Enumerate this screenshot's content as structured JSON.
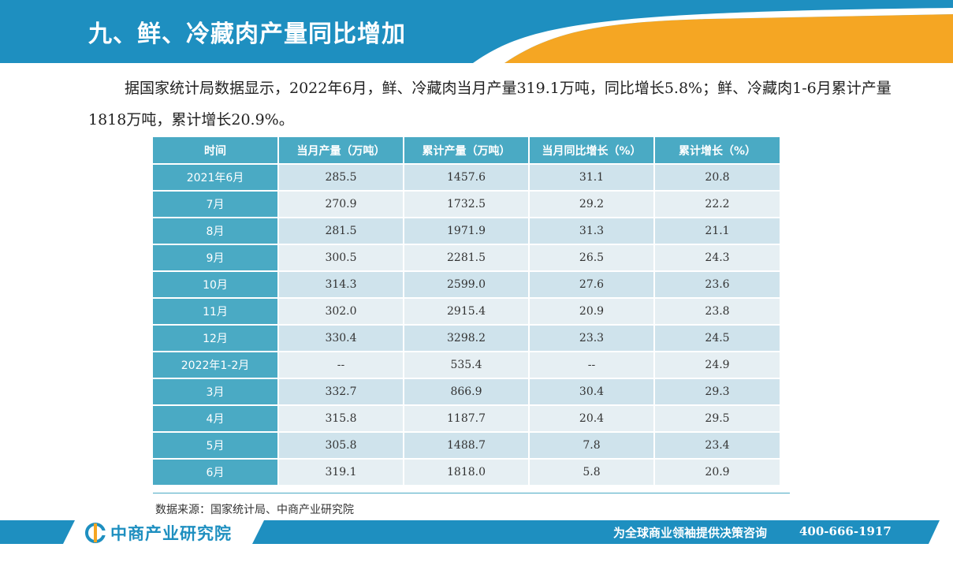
{
  "header": {
    "title": "九、鲜、冷藏肉产量同比增加"
  },
  "intro": {
    "text": "据国家统计局数据显示，2022年6月，鲜、冷藏肉当月产量319.1万吨，同比增长5.8%；鲜、冷藏肉1-6月累计产量1818万吨，累计增长20.9%。"
  },
  "table": {
    "headers": [
      "时间",
      "当月产量（万吨）",
      "累计产量（万吨）",
      "当月同比增长（%）",
      "累计增长（%）"
    ],
    "rows": [
      [
        "2021年6月",
        "285.5",
        "1457.6",
        "31.1",
        "20.8"
      ],
      [
        "7月",
        "270.9",
        "1732.5",
        "29.2",
        "22.2"
      ],
      [
        "8月",
        "281.5",
        "1971.9",
        "31.3",
        "21.1"
      ],
      [
        "9月",
        "300.5",
        "2281.5",
        "26.5",
        "24.3"
      ],
      [
        "10月",
        "314.3",
        "2599.0",
        "27.6",
        "23.6"
      ],
      [
        "11月",
        "302.0",
        "2915.4",
        "20.9",
        "23.8"
      ],
      [
        "12月",
        "330.4",
        "3298.2",
        "23.3",
        "24.5"
      ],
      [
        "2022年1-2月",
        "--",
        "535.4",
        "--",
        "24.9"
      ],
      [
        "3月",
        "332.7",
        "866.9",
        "30.4",
        "29.3"
      ],
      [
        "4月",
        "315.8",
        "1187.7",
        "20.4",
        "29.5"
      ],
      [
        "5月",
        "305.8",
        "1488.7",
        "7.8",
        "23.4"
      ],
      [
        "6月",
        "319.1",
        "1818.0",
        "5.8",
        "20.9"
      ]
    ]
  },
  "source": {
    "text": "数据来源：国家统计局、中商产业研究院"
  },
  "footer": {
    "logo_text": "中商产业研究院",
    "slogan": "为全球商业领袖提供决策咨询",
    "phone": "400-666-1917"
  },
  "colors": {
    "primary_blue": "#1e8fc0",
    "accent_orange": "#f5a623",
    "table_header": "#4aaac4"
  }
}
